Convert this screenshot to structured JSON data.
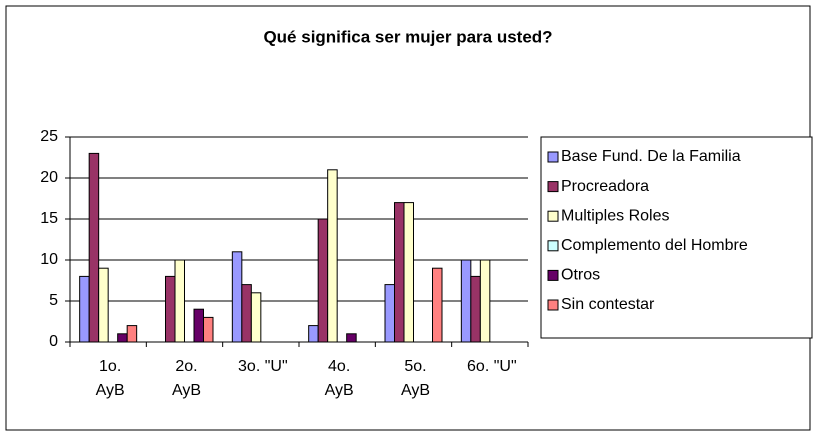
{
  "chart_data": {
    "type": "bar",
    "title": "Qué  significa ser mujer para usted?",
    "categories": [
      "1o.\nAyB",
      "2o.\nAyB",
      "3o. \"U\"",
      "4o.\nAyB",
      "5o.\nAyB",
      "6o. \"U\""
    ],
    "series": [
      {
        "name": "Base Fund. De la Familia",
        "color": "#9999ff",
        "values": [
          8,
          0,
          11,
          2,
          7,
          10
        ]
      },
      {
        "name": "Procreadora",
        "color": "#993366",
        "values": [
          23,
          8,
          7,
          15,
          17,
          8
        ]
      },
      {
        "name": "Multiples Roles",
        "color": "#ffffcc",
        "values": [
          9,
          10,
          6,
          21,
          17,
          10
        ]
      },
      {
        "name": "Complemento del Hombre",
        "color": "#ccffff",
        "values": [
          0,
          0,
          0,
          0,
          0,
          0
        ]
      },
      {
        "name": "Otros",
        "color": "#660066",
        "values": [
          1,
          4,
          0,
          1,
          0,
          0
        ]
      },
      {
        "name": "Sin contestar",
        "color": "#ff8080",
        "values": [
          2,
          3,
          0,
          0,
          9,
          0
        ]
      }
    ],
    "ylim": [
      0,
      25
    ],
    "yticks": [
      0,
      5,
      10,
      15,
      20,
      25
    ],
    "grid": true,
    "legend": "right"
  }
}
